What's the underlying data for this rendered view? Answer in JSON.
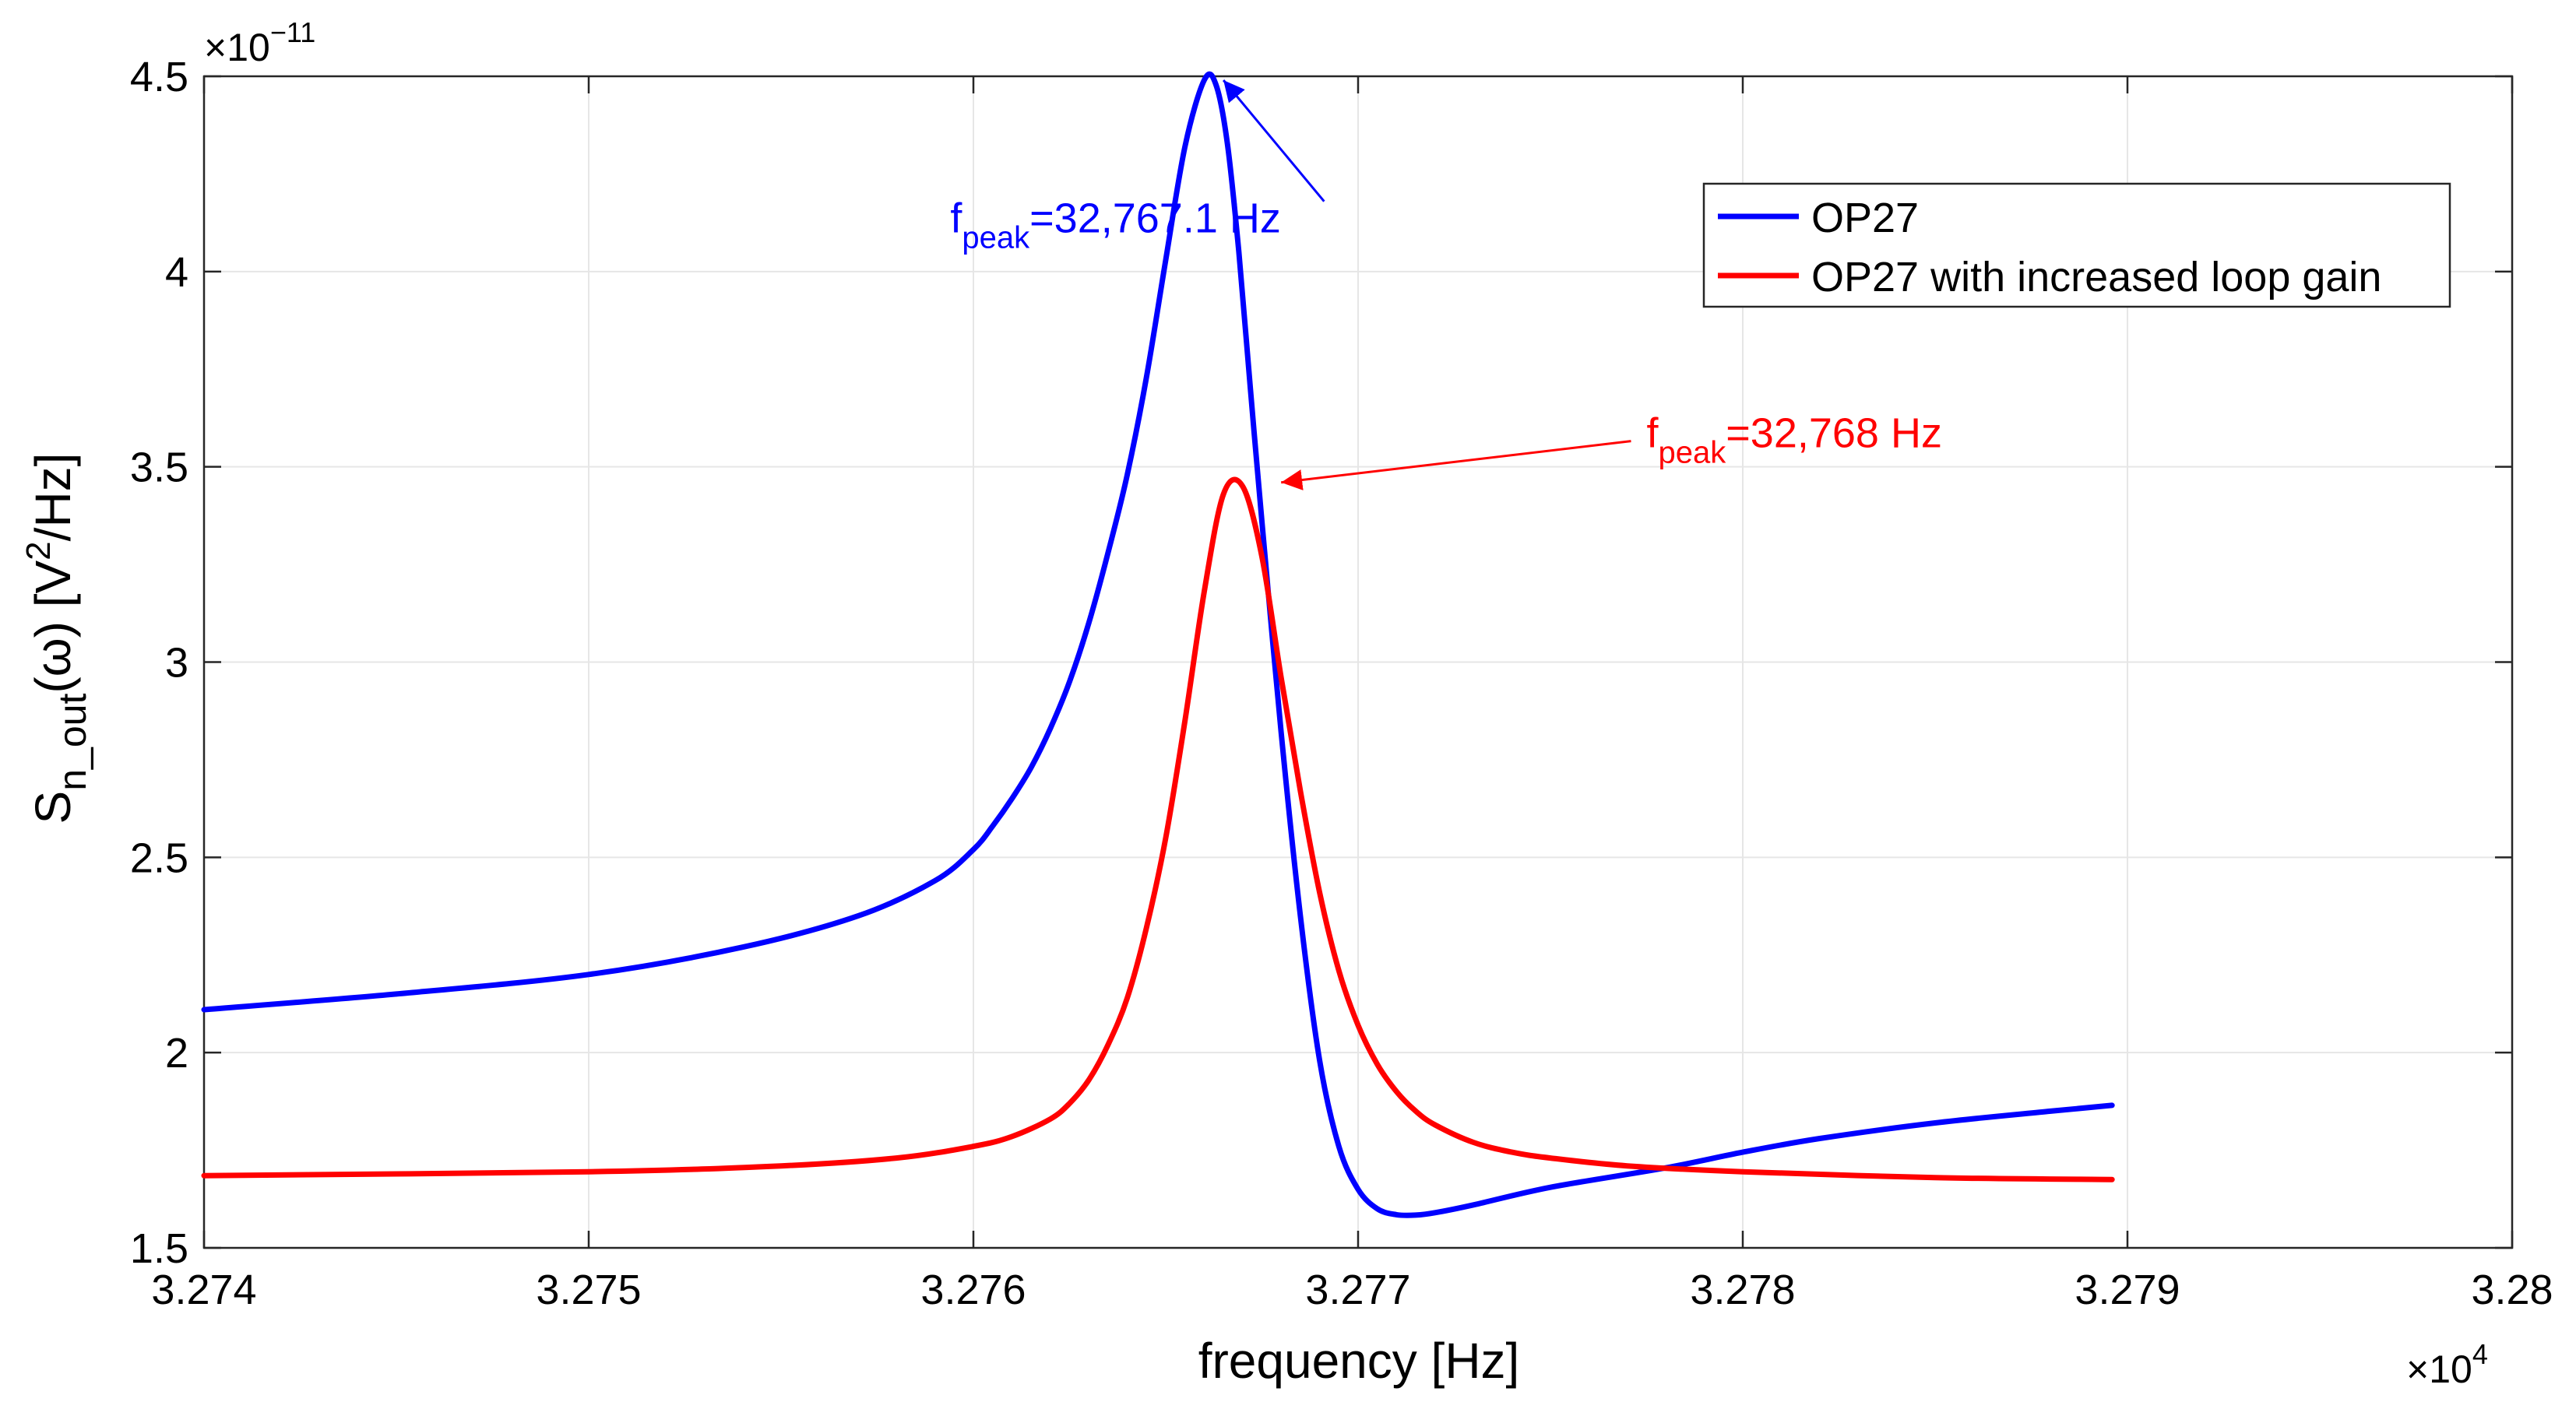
{
  "chart_data": {
    "type": "line",
    "title": "",
    "xlabel": "frequency [Hz]",
    "ylabel": {
      "main": "S",
      "sub": "n_out",
      "rest": "(ω) [V",
      "sup": "2",
      "tail": "/Hz]"
    },
    "x_exponent": {
      "base": "×10",
      "power": "4"
    },
    "y_exponent": {
      "base": "×10",
      "power": "−11"
    },
    "xlim": [
      3.274,
      3.28
    ],
    "ylim": [
      1.5,
      4.5
    ],
    "xticks": [
      3.274,
      3.275,
      3.276,
      3.277,
      3.278,
      3.279,
      3.28
    ],
    "xtick_labels": [
      "3.274",
      "3.275",
      "3.276",
      "3.277",
      "3.278",
      "3.279",
      "3.28"
    ],
    "yticks": [
      1.5,
      2,
      2.5,
      3,
      3.5,
      4,
      4.5
    ],
    "ytick_labels": [
      "1.5",
      "2",
      "2.5",
      "3",
      "3.5",
      "4",
      "4.5"
    ],
    "grid": true,
    "legend_position": "top-right",
    "series": [
      {
        "name": "OP27",
        "color": "#0000ff",
        "x": [
          3.274,
          3.2745,
          3.275,
          3.2754,
          3.2757,
          3.2759,
          3.276,
          3.27605,
          3.2761,
          3.27615,
          3.2762,
          3.27625,
          3.2763,
          3.27635,
          3.2764,
          3.27645,
          3.2765,
          3.27655,
          3.2766,
          3.27663,
          3.27666,
          3.27669,
          3.27672,
          3.27675,
          3.2768,
          3.27685,
          3.2769,
          3.27695,
          3.277,
          3.27705,
          3.2771,
          3.27715,
          3.2772,
          3.2773,
          3.2775,
          3.2778,
          3.278,
          3.2782,
          3.2785,
          3.2788,
          3.27896
        ],
        "values": [
          2.11,
          2.15,
          2.2,
          2.27,
          2.35,
          2.44,
          2.52,
          2.58,
          2.65,
          2.73,
          2.83,
          2.95,
          3.1,
          3.28,
          3.48,
          3.73,
          4.03,
          4.32,
          4.49,
          4.48,
          4.33,
          4.05,
          3.7,
          3.36,
          2.82,
          2.35,
          1.98,
          1.76,
          1.65,
          1.6,
          1.585,
          1.584,
          1.59,
          1.61,
          1.655,
          1.705,
          1.745,
          1.78,
          1.82,
          1.85,
          1.865
        ]
      },
      {
        "name": "OP27 with increased loop gain",
        "color": "#ff0000",
        "x": [
          3.274,
          3.275,
          3.2755,
          3.2758,
          3.276,
          3.2761,
          3.2762,
          3.27625,
          3.2763,
          3.27635,
          3.2764,
          3.27645,
          3.2765,
          3.27655,
          3.2766,
          3.27665,
          3.2767,
          3.27675,
          3.2768,
          3.27685,
          3.2769,
          3.27695,
          3.277,
          3.27705,
          3.2771,
          3.27715,
          3.2772,
          3.2773,
          3.2774,
          3.2775,
          3.2777,
          3.278,
          3.2785,
          3.27896
        ],
        "values": [
          1.685,
          1.695,
          1.71,
          1.73,
          1.76,
          1.785,
          1.83,
          1.87,
          1.93,
          2.02,
          2.14,
          2.32,
          2.55,
          2.85,
          3.18,
          3.43,
          3.45,
          3.27,
          2.96,
          2.67,
          2.41,
          2.21,
          2.07,
          1.97,
          1.9,
          1.85,
          1.815,
          1.77,
          1.745,
          1.73,
          1.71,
          1.695,
          1.68,
          1.675
        ]
      }
    ],
    "annotations": [
      {
        "text_main": "f",
        "text_sub": "peak",
        "text_rest": "=32,767.1 Hz",
        "color": "#0000ff",
        "text_x": 3.27594,
        "text_y": 4.1,
        "arrow_to": [
          3.27665,
          4.49
        ]
      },
      {
        "text_main": "f",
        "text_sub": "peak",
        "text_rest": "=32,768 Hz",
        "color": "#ff0000",
        "text_x": 3.27775,
        "text_y": 3.55,
        "arrow_to": [
          3.2768,
          3.46
        ]
      }
    ]
  }
}
